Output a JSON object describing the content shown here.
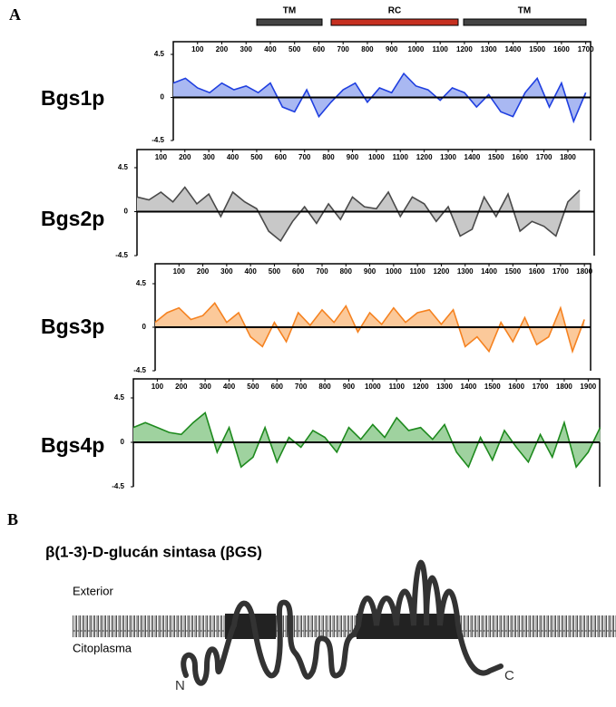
{
  "panel_a": "A",
  "domains": [
    {
      "label": "TM"
    },
    {
      "label": "RC"
    },
    {
      "label": "TM"
    }
  ],
  "chart_data": [
    {
      "type": "area",
      "series": [
        {
          "name": "Bgs1p",
          "color": "#1f3fe0",
          "fill": "#a9b8f2",
          "x": [
            0,
            50,
            100,
            150,
            200,
            250,
            300,
            350,
            400,
            450,
            500,
            550,
            600,
            650,
            700,
            750,
            800,
            850,
            900,
            950,
            1000,
            1050,
            1100,
            1150,
            1200,
            1250,
            1300,
            1350,
            1400,
            1450,
            1500,
            1550,
            1600,
            1650,
            1700
          ],
          "values": [
            1.5,
            2,
            1,
            0.5,
            1.5,
            0.8,
            1.2,
            0.5,
            1.5,
            -1,
            -1.5,
            0.8,
            -2,
            -0.5,
            0.8,
            1.5,
            -0.5,
            1,
            0.5,
            2.5,
            1.2,
            0.8,
            -0.3,
            1,
            0.5,
            -1,
            0.3,
            -1.5,
            -2,
            0.5,
            2,
            -1,
            1.5,
            -2.5,
            0.5
          ]
        }
      ],
      "xlim": [
        0,
        1720
      ],
      "xticks": [
        100,
        200,
        300,
        400,
        500,
        600,
        700,
        800,
        900,
        1000,
        1100,
        1200,
        1300,
        1400,
        1500,
        1600,
        1700
      ],
      "ylim": [
        -4.5,
        4.5
      ],
      "yticks": [
        4.5,
        0,
        -4.5
      ]
    },
    {
      "type": "area",
      "series": [
        {
          "name": "Bgs2p",
          "color": "#4a4a4a",
          "fill": "#c8c8c8",
          "x": [
            0,
            50,
            100,
            150,
            200,
            250,
            300,
            350,
            400,
            450,
            500,
            550,
            600,
            650,
            700,
            750,
            800,
            850,
            900,
            950,
            1000,
            1050,
            1100,
            1150,
            1200,
            1250,
            1300,
            1350,
            1400,
            1450,
            1500,
            1550,
            1600,
            1650,
            1700,
            1750,
            1800,
            1850
          ],
          "values": [
            1.5,
            1.2,
            2,
            1,
            2.5,
            0.8,
            1.8,
            -0.5,
            2,
            1,
            0.3,
            -2,
            -3,
            -1,
            0.5,
            -1.2,
            0.8,
            -0.8,
            1.5,
            0.5,
            0.3,
            2,
            -0.5,
            1.5,
            0.8,
            -1,
            0.5,
            -2.5,
            -1.8,
            1.5,
            -0.5,
            1.8,
            -2,
            -1,
            -1.5,
            -2.5,
            1,
            2.2
          ]
        }
      ],
      "xlim": [
        0,
        1910
      ],
      "xticks": [
        100,
        200,
        300,
        400,
        500,
        600,
        700,
        800,
        900,
        1000,
        1100,
        1200,
        1300,
        1400,
        1500,
        1600,
        1700,
        1800
      ],
      "ylim": [
        -4.5,
        4.5
      ],
      "yticks": [
        4.5,
        0,
        -4.5
      ]
    },
    {
      "type": "area",
      "series": [
        {
          "name": "Bgs3p",
          "color": "#f58220",
          "fill": "#fbc99a",
          "x": [
            0,
            50,
            100,
            150,
            200,
            250,
            300,
            350,
            400,
            450,
            500,
            550,
            600,
            650,
            700,
            750,
            800,
            850,
            900,
            950,
            1000,
            1050,
            1100,
            1150,
            1200,
            1250,
            1300,
            1350,
            1400,
            1450,
            1500,
            1550,
            1600,
            1650,
            1700,
            1750,
            1800
          ],
          "values": [
            0.5,
            1.5,
            2,
            0.8,
            1.2,
            2.5,
            0.5,
            1.5,
            -1,
            -2,
            0.5,
            -1.5,
            1.5,
            0.2,
            1.8,
            0.5,
            2.2,
            -0.5,
            1.5,
            0.3,
            2,
            0.5,
            1.5,
            1.8,
            0.3,
            1.8,
            -2,
            -1,
            -2.5,
            0.5,
            -1.5,
            1,
            -1.8,
            -1,
            2,
            -2.5,
            0.8
          ]
        }
      ],
      "xlim": [
        0,
        1826
      ],
      "xticks": [
        100,
        200,
        300,
        400,
        500,
        600,
        700,
        800,
        900,
        1000,
        1100,
        1200,
        1300,
        1400,
        1500,
        1600,
        1700,
        1800
      ],
      "ylim": [
        -4.5,
        4.5
      ],
      "yticks": [
        4.5,
        0,
        -4.5
      ]
    },
    {
      "type": "area",
      "series": [
        {
          "name": "Bgs4p",
          "color": "#1e8a1e",
          "fill": "#9fd29f",
          "x": [
            0,
            50,
            100,
            150,
            200,
            250,
            300,
            350,
            400,
            450,
            500,
            550,
            600,
            650,
            700,
            750,
            800,
            850,
            900,
            950,
            1000,
            1050,
            1100,
            1150,
            1200,
            1250,
            1300,
            1350,
            1400,
            1450,
            1500,
            1550,
            1600,
            1650,
            1700,
            1750,
            1800,
            1850,
            1900,
            1950
          ],
          "values": [
            1.5,
            2,
            1.5,
            1,
            0.8,
            2,
            3,
            -1,
            1.5,
            -2.5,
            -1.5,
            1.5,
            -2,
            0.5,
            -0.5,
            1.2,
            0.5,
            -1,
            1.5,
            0.3,
            1.8,
            0.5,
            2.5,
            1.2,
            1.5,
            0.3,
            1.8,
            -1,
            -2.5,
            0.5,
            -1.8,
            1.2,
            -0.5,
            -2,
            0.8,
            -1.5,
            2,
            -2.5,
            -1,
            1.5
          ]
        }
      ],
      "xlim": [
        0,
        1948
      ],
      "xticks": [
        100,
        200,
        300,
        400,
        500,
        600,
        700,
        800,
        900,
        1000,
        1100,
        1200,
        1300,
        1400,
        1500,
        1600,
        1700,
        1800,
        1900
      ],
      "ylim": [
        -4.5,
        4.5
      ],
      "yticks": [
        4.5,
        0,
        -4.5
      ]
    }
  ],
  "panel_b": {
    "label": "B",
    "title": "β(1-3)-D-glucán sintasa (βGS)",
    "exterior": "Exterior",
    "cytoplasm": "Citoplasma",
    "n_term": "N",
    "c_term": "C"
  }
}
